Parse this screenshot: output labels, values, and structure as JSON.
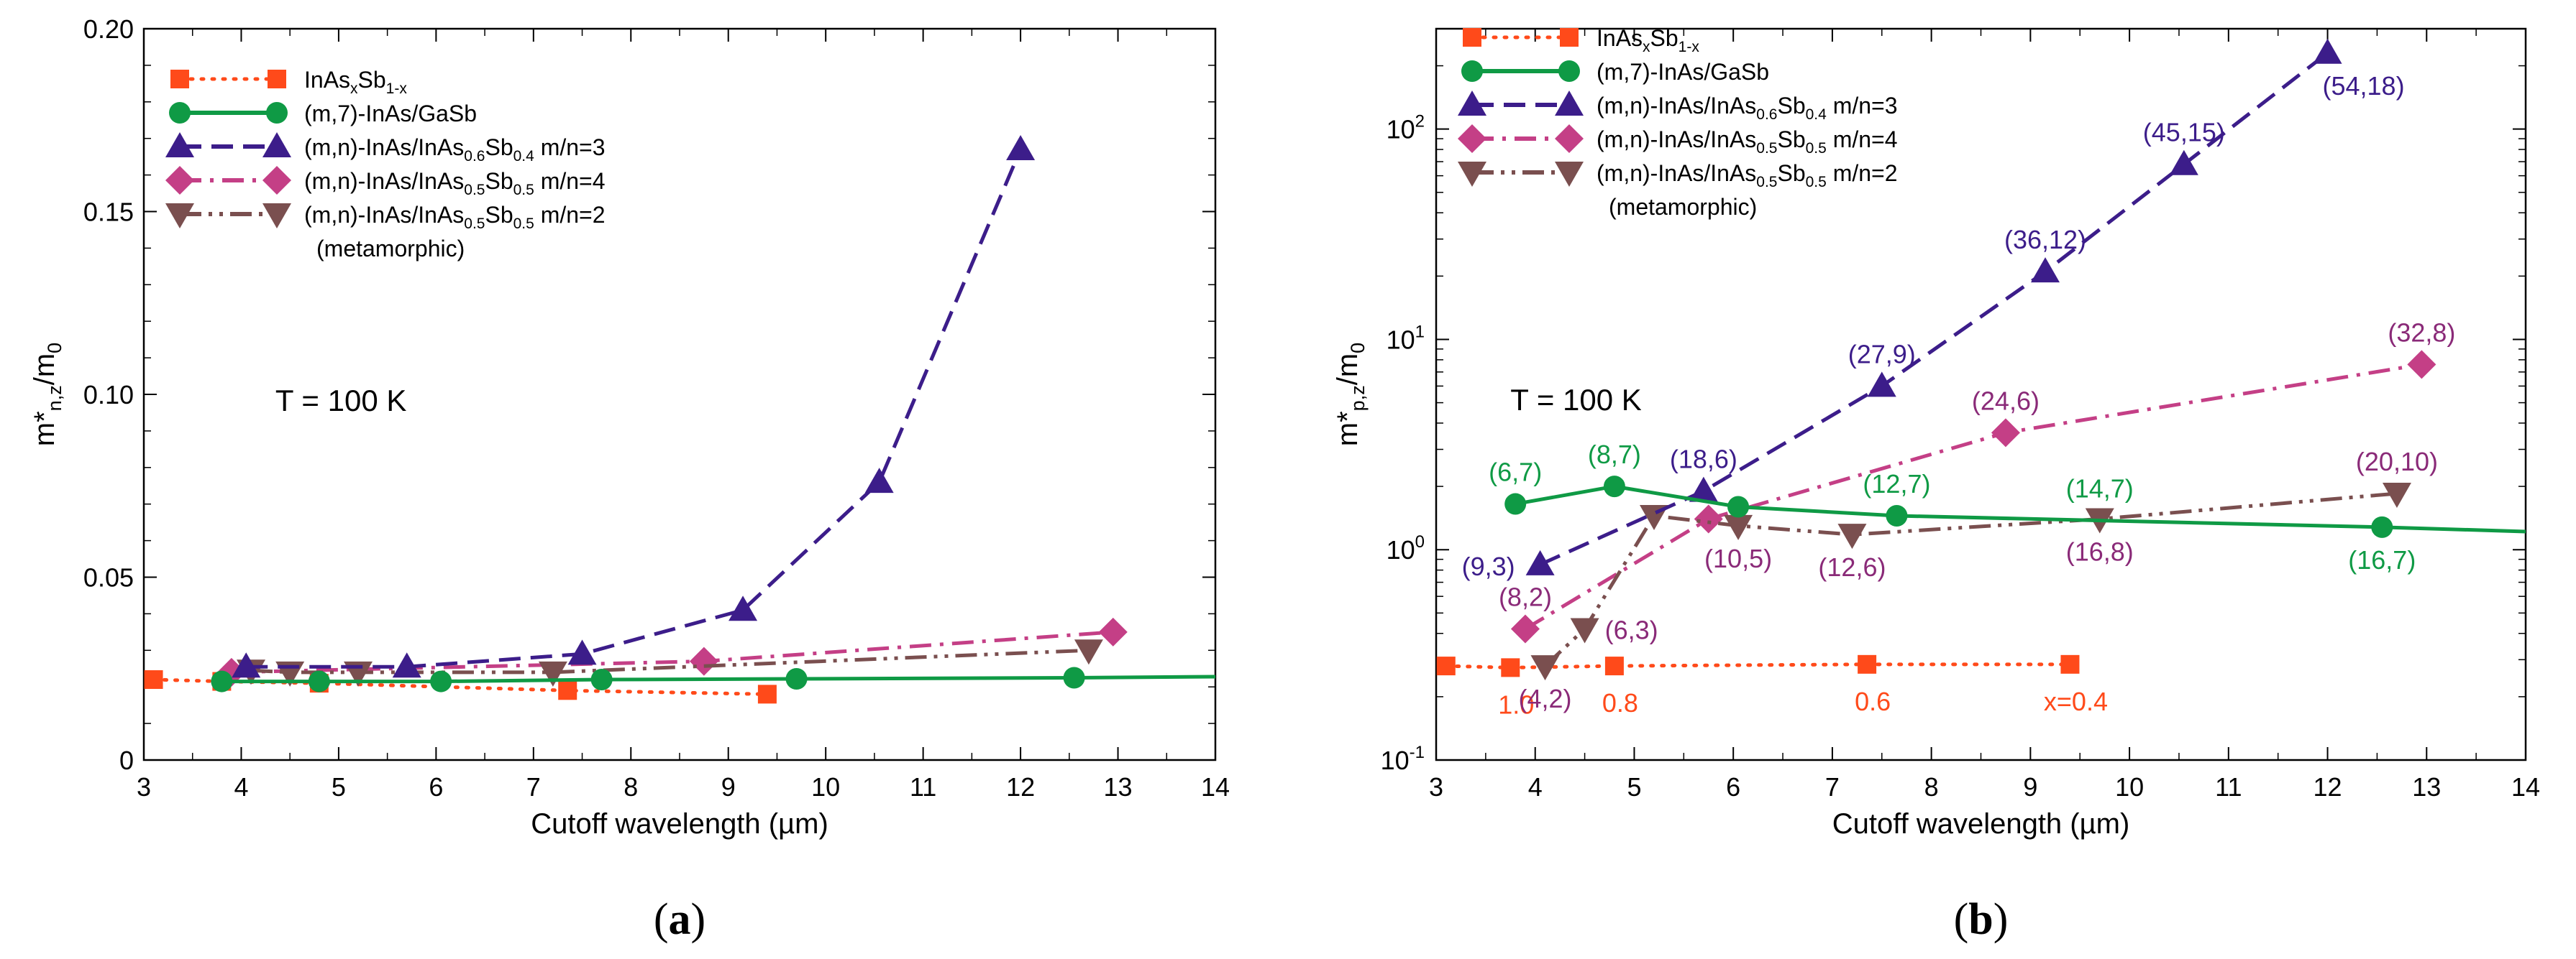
{
  "colors": {
    "inassb": "#ff4a1a",
    "gasb": "#0f9a45",
    "m3": "#3c1d8a",
    "m4": "#c43f86",
    "m2": "#7a4f4f",
    "label_m3": "#3c1d8a",
    "label_m4": "#8a2a78",
    "label_m2": "#8a2a78",
    "label_gasb": "#0f9a45",
    "label_inassb": "#ff4a1a"
  },
  "chart_data": [
    {
      "panel": "a",
      "type": "line",
      "panel_label": "(a)",
      "xlabel": "Cutoff wavelength (µm)",
      "ylabel_main": "m*",
      "ylabel_sub": "n,z",
      "ylabel_div": "/m",
      "ylabel_sub2": "0",
      "xlim": [
        3,
        14
      ],
      "ylim": [
        0,
        0.2
      ],
      "yscale": "linear",
      "xticks": [
        "3",
        "4",
        "5",
        "6",
        "7",
        "8",
        "9",
        "10",
        "11",
        "12",
        "13",
        "14"
      ],
      "yticks": [
        "0",
        "0.05",
        "0.10",
        "0.15",
        "0.20"
      ],
      "annotation": "T = 100 K",
      "legend": [
        {
          "series": "inassb",
          "parts": [
            "InAs",
            "x",
            "Sb",
            "1-x",
            ""
          ]
        },
        {
          "series": "gasb",
          "parts": [
            "(m,7)-InAs/GaSb"
          ]
        },
        {
          "series": "m3",
          "parts": [
            "(m,n)-InAs/InAs",
            "0.6",
            "Sb",
            "0.4",
            " m/n=3"
          ]
        },
        {
          "series": "m4",
          "parts": [
            "(m,n)-InAs/InAs",
            "0.5",
            "Sb",
            "0.5",
            " m/n=4"
          ]
        },
        {
          "series": "m2",
          "parts": [
            "(m,n)-InAs/InAs",
            "0.5",
            "Sb",
            "0.5",
            " m/n=2"
          ]
        },
        {
          "series": "note",
          "parts": [
            "(metamorphic)"
          ]
        }
      ],
      "series": [
        {
          "id": "inassb",
          "name": "InAsxSb1-x",
          "marker": "square",
          "dash": "dot",
          "x": [
            3.1,
            3.8,
            4.8,
            7.35,
            9.4
          ],
          "y": [
            0.022,
            0.0215,
            0.021,
            0.019,
            0.018
          ]
        },
        {
          "id": "gasb",
          "name": "(m,7)-InAs/GaSb",
          "marker": "circle",
          "dash": "solid",
          "x": [
            3.8,
            4.8,
            6.05,
            7.7,
            9.7,
            12.55
          ],
          "y": [
            0.0215,
            0.0215,
            0.0215,
            0.022,
            0.0222,
            0.0225
          ],
          "trend_end": [
            14,
            0.0228
          ]
        },
        {
          "id": "m3",
          "name": "(m,n)-InAs/InAs0.6Sb0.4 m/n=3",
          "marker": "triangle-up",
          "dash": "dash",
          "x": [
            4.05,
            5.7,
            7.5,
            9.15,
            10.55,
            12.0
          ],
          "y": [
            0.0255,
            0.0255,
            0.029,
            0.041,
            0.076,
            0.167
          ]
        },
        {
          "id": "m4",
          "name": "(m,n)-InAs/InAs0.5Sb0.5 m/n=4",
          "marker": "diamond",
          "dash": "dashdot",
          "x": [
            3.9,
            8.75,
            12.95
          ],
          "y": [
            0.024,
            0.027,
            0.035
          ]
        },
        {
          "id": "m2",
          "name": "(m,n)-InAs/InAs0.5Sb0.5 m/n=2",
          "marker": "triangle-down",
          "dash": "dashdotdot",
          "x": [
            4.1,
            4.5,
            5.2,
            7.2,
            12.7
          ],
          "y": [
            0.0245,
            0.024,
            0.024,
            0.024,
            0.03
          ]
        }
      ]
    },
    {
      "panel": "b",
      "type": "line",
      "panel_label": "(b)",
      "xlabel": "Cutoff wavelength (µm)",
      "ylabel_main": "m*",
      "ylabel_sub": "p,z",
      "ylabel_div": "/m",
      "ylabel_sub2": "0",
      "xlim": [
        3,
        14
      ],
      "ylim": [
        0.1,
        300
      ],
      "yscale": "log",
      "xticks": [
        "3",
        "4",
        "5",
        "6",
        "7",
        "8",
        "9",
        "10",
        "11",
        "12",
        "13",
        "14"
      ],
      "yticks": [
        {
          "value": 0.1,
          "base": "10",
          "exp": "-1"
        },
        {
          "value": 1,
          "base": "10",
          "exp": "0"
        },
        {
          "value": 10,
          "base": "10",
          "exp": "1"
        },
        {
          "value": 100,
          "base": "10",
          "exp": "2"
        }
      ],
      "annotation": "T = 100 K",
      "legend": [
        {
          "series": "inassb",
          "parts": [
            "InAs",
            "x",
            "Sb",
            "1-x",
            ""
          ]
        },
        {
          "series": "gasb",
          "parts": [
            "(m,7)-InAs/GaSb"
          ]
        },
        {
          "series": "m3",
          "parts": [
            "(m,n)-InAs/InAs",
            "0.6",
            "Sb",
            "0.4",
            " m/n=3"
          ]
        },
        {
          "series": "m4",
          "parts": [
            "(m,n)-InAs/InAs",
            "0.5",
            "Sb",
            "0.5",
            " m/n=4"
          ]
        },
        {
          "series": "m2",
          "parts": [
            "(m,n)-InAs/InAs",
            "0.5",
            "Sb",
            "0.5",
            " m/n=2"
          ]
        },
        {
          "series": "note",
          "parts": [
            "(metamorphic)"
          ]
        }
      ],
      "series": [
        {
          "id": "inassb",
          "name": "InAsxSb1-x",
          "marker": "square",
          "dash": "dot",
          "x": [
            3.1,
            3.75,
            4.8,
            7.35,
            9.4
          ],
          "y": [
            0.28,
            0.275,
            0.28,
            0.285,
            0.285
          ],
          "labels": [
            {
              "text": "1.0",
              "at": 1,
              "pos": "below"
            },
            {
              "text": "0.8",
              "at": 2,
              "pos": "below"
            },
            {
              "text": "0.6",
              "at": 3,
              "pos": "below"
            },
            {
              "text": "x=0.4",
              "at": 4,
              "pos": "below"
            }
          ]
        },
        {
          "id": "gasb",
          "name": "(m,7)-InAs/GaSb",
          "marker": "circle",
          "dash": "solid",
          "x": [
            3.8,
            4.8,
            6.05,
            7.65,
            12.55
          ],
          "y": [
            1.65,
            2.0,
            1.6,
            1.45,
            1.28
          ],
          "trend_end": [
            14,
            1.22
          ],
          "labels": [
            {
              "text": "(6,7)",
              "at": 0,
              "pos": "above"
            },
            {
              "text": "(8,7)",
              "at": 1,
              "pos": "above"
            },
            {
              "text": "(12,7)",
              "at": 3,
              "pos": "above"
            },
            {
              "text": "(14,7)",
              "at": 5,
              "x": 9.7,
              "y": 1.38,
              "pos": "above"
            },
            {
              "text": "(16,7)",
              "at": 4,
              "pos": "below"
            }
          ]
        },
        {
          "id": "m3",
          "name": "(m,n)-InAs/InAs0.6Sb0.4 m/n=3",
          "marker": "triangle-up",
          "dash": "dash",
          "x": [
            4.05,
            5.7,
            7.5,
            9.15,
            10.55,
            12.0
          ],
          "y": [
            0.85,
            1.9,
            6.0,
            21.0,
            68.0,
            230.0
          ],
          "labels": [
            {
              "text": "(9,3)",
              "at": 0,
              "pos": "left"
            },
            {
              "text": "(18,6)",
              "at": 1,
              "pos": "above"
            },
            {
              "text": "(27,9)",
              "at": 2,
              "pos": "above"
            },
            {
              "text": "(36,12)",
              "at": 3,
              "pos": "above"
            },
            {
              "text": "(45,15)",
              "at": 4,
              "pos": "above"
            },
            {
              "text": "(54,18)",
              "at": 5,
              "pos": "below"
            }
          ]
        },
        {
          "id": "m4",
          "name": "(m,n)-InAs/InAs0.5Sb0.5 m/n=4",
          "marker": "diamond",
          "dash": "dashdot",
          "x": [
            3.9,
            5.75,
            8.75,
            12.95
          ],
          "y": [
            0.42,
            1.4,
            3.6,
            7.6
          ],
          "labels": [
            {
              "text": "(8,2)",
              "at": 0,
              "pos": "above"
            },
            {
              "text": "(24,6)",
              "at": 2,
              "pos": "above"
            },
            {
              "text": "(32,8)",
              "at": 3,
              "pos": "above"
            }
          ]
        },
        {
          "id": "m2",
          "name": "(m,n)-InAs/InAs0.5Sb0.5 m/n=2",
          "marker": "triangle-down",
          "dash": "dashdotdot",
          "x": [
            4.1,
            4.5,
            5.2,
            6.05,
            7.2,
            9.7,
            12.7
          ],
          "y": [
            0.28,
            0.42,
            1.45,
            1.3,
            1.18,
            1.4,
            1.85
          ],
          "labels": [
            {
              "text": "(4,2)",
              "at": 0,
              "pos": "below"
            },
            {
              "text": "(6,3)",
              "at": 1,
              "pos": "right"
            },
            {
              "text": "(10,5)",
              "at": 3,
              "pos": "below"
            },
            {
              "text": "(12,6)",
              "at": 4,
              "pos": "below"
            },
            {
              "text": "(16,8)",
              "at": 5,
              "pos": "below"
            },
            {
              "text": "(20,10)",
              "at": 6,
              "pos": "above"
            }
          ]
        }
      ]
    }
  ]
}
